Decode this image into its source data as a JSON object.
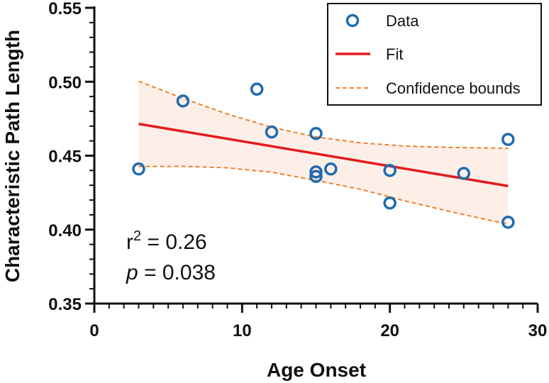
{
  "chart_data": {
    "type": "scatter",
    "xlabel": "Age Onset",
    "ylabel": "Characteristic Path Length",
    "xlim": [
      0,
      30
    ],
    "ylim": [
      0.35,
      0.55
    ],
    "x_ticks": [
      0,
      10,
      20,
      30
    ],
    "x_tick_labels": [
      "0",
      "10",
      "20",
      "30"
    ],
    "y_ticks": [
      0.35,
      0.4,
      0.45,
      0.5,
      0.55
    ],
    "y_tick_labels": [
      "0.35",
      "0.40",
      "0.45",
      "0.50",
      "0.55"
    ],
    "x_minor_step": 1,
    "y_minor_step": 0.01,
    "grid": false,
    "legend_position": "top-right",
    "series": [
      {
        "name": "Data",
        "kind": "points",
        "color": "#1f6bb0",
        "points": [
          {
            "x": 3,
            "y": 0.441
          },
          {
            "x": 6,
            "y": 0.487
          },
          {
            "x": 11,
            "y": 0.495
          },
          {
            "x": 12,
            "y": 0.466
          },
          {
            "x": 15,
            "y": 0.465
          },
          {
            "x": 15,
            "y": 0.439
          },
          {
            "x": 15,
            "y": 0.436
          },
          {
            "x": 16,
            "y": 0.441
          },
          {
            "x": 20,
            "y": 0.44
          },
          {
            "x": 20,
            "y": 0.418
          },
          {
            "x": 25,
            "y": 0.438
          },
          {
            "x": 28,
            "y": 0.461
          },
          {
            "x": 28,
            "y": 0.405
          }
        ]
      },
      {
        "name": "Fit",
        "kind": "line",
        "color": "#e31a1c",
        "x": [
          3,
          28
        ],
        "y": [
          0.4715,
          0.4295
        ]
      },
      {
        "name": "Confidence bounds",
        "kind": "band",
        "color": "#f0802a",
        "fill": "#fdeee8",
        "x": [
          3,
          6,
          9,
          12,
          15,
          18,
          21,
          24,
          27,
          28
        ],
        "upper": [
          0.5003,
          0.4888,
          0.4782,
          0.4692,
          0.4627,
          0.4587,
          0.4565,
          0.4556,
          0.4552,
          0.455
        ],
        "lower": [
          0.4427,
          0.4428,
          0.4418,
          0.4388,
          0.4333,
          0.4273,
          0.4195,
          0.4124,
          0.4058,
          0.404
        ]
      }
    ],
    "annotations": {
      "r_prefix": "r",
      "r_superscript": "2",
      "r_value": " = 0.26",
      "p_label": "p",
      "p_value": " = 0.038"
    }
  }
}
